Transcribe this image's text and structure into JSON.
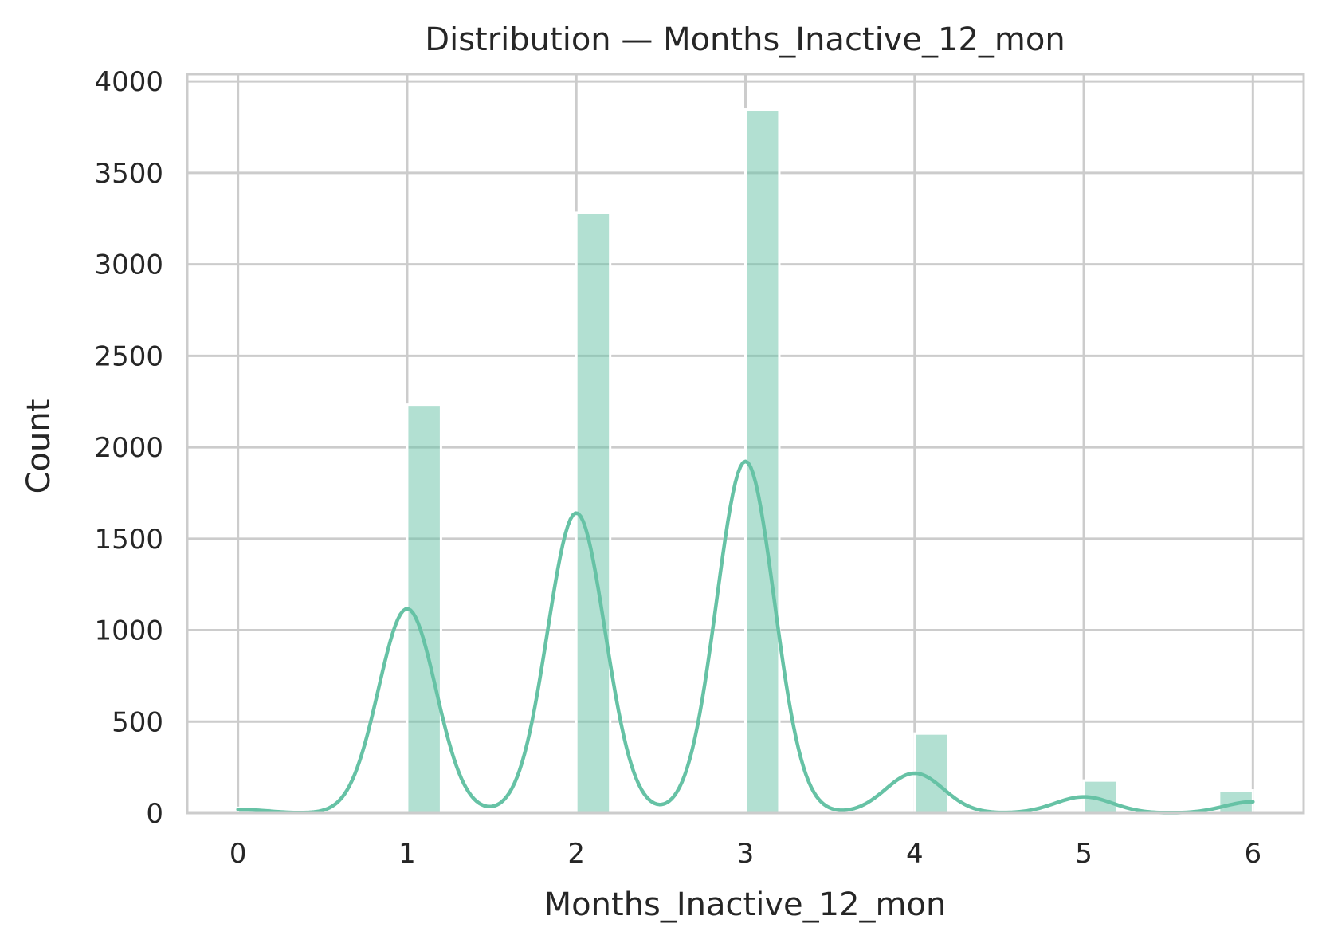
{
  "chart_data": {
    "type": "bar",
    "title": "Distribution — Months_Inactive_12_mon",
    "xlabel": "Months_Inactive_12_mon",
    "ylabel": "Count",
    "xlim": [
      -0.3,
      6.3
    ],
    "ylim": [
      0,
      4040
    ],
    "x_ticks": [
      0,
      1,
      2,
      3,
      4,
      5,
      6
    ],
    "y_ticks": [
      0,
      500,
      1000,
      1500,
      2000,
      2500,
      3000,
      3500,
      4000
    ],
    "grid": true,
    "bar_color": "#66c2a5",
    "kde_color": "#66c2a5",
    "bins": [
      {
        "x0": 0.0,
        "x1": 0.2,
        "count": 29
      },
      {
        "x0": 1.0,
        "x1": 1.2,
        "count": 2233
      },
      {
        "x0": 2.0,
        "x1": 2.2,
        "count": 3282
      },
      {
        "x0": 3.0,
        "x1": 3.2,
        "count": 3846
      },
      {
        "x0": 4.0,
        "x1": 4.2,
        "count": 435
      },
      {
        "x0": 5.0,
        "x1": 5.2,
        "count": 178
      },
      {
        "x0": 5.8,
        "x1": 6.0,
        "count": 124
      }
    ],
    "kde": {
      "peaks": [
        {
          "x": 0.0,
          "height": 20
        },
        {
          "x": 1.0,
          "height": 1117
        },
        {
          "x": 2.0,
          "height": 1641
        },
        {
          "x": 3.0,
          "height": 1923
        },
        {
          "x": 4.0,
          "height": 218
        },
        {
          "x": 5.0,
          "height": 89
        },
        {
          "x": 6.0,
          "height": 62
        }
      ],
      "bandwidth": 0.17,
      "x_range": [
        0,
        6
      ]
    }
  }
}
